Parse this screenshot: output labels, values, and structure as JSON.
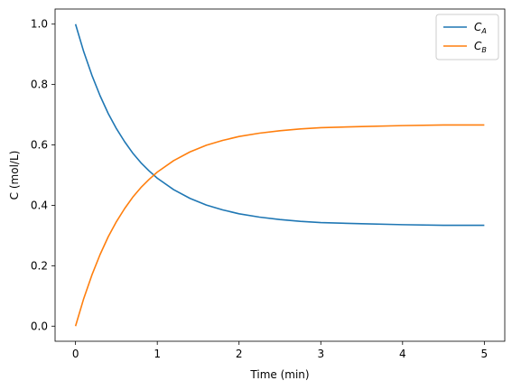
{
  "chart_data": {
    "type": "line",
    "xlabel": "Time (min)",
    "ylabel": "C (mol/L)",
    "xlim": [
      -0.25,
      5.25
    ],
    "ylim": [
      -0.05,
      1.05
    ],
    "xticks": [
      0,
      1,
      2,
      3,
      4,
      5
    ],
    "xtick_labels": [
      "0",
      "1",
      "2",
      "3",
      "4",
      "5"
    ],
    "yticks": [
      0.0,
      0.2,
      0.4,
      0.6,
      0.8,
      1.0
    ],
    "ytick_labels": [
      "0.0",
      "0.2",
      "0.4",
      "0.6",
      "0.8",
      "1.0"
    ],
    "grid": false,
    "legend_position": "top-right",
    "x": [
      0,
      0.1,
      0.2,
      0.3,
      0.4,
      0.5,
      0.6,
      0.7,
      0.8,
      0.9,
      1.0,
      1.2,
      1.4,
      1.6,
      1.8,
      2.0,
      2.25,
      2.5,
      2.75,
      3.0,
      3.5,
      4.0,
      4.5,
      5.0
    ],
    "series": [
      {
        "name": "C_A",
        "label_main": "C",
        "label_sub": "A",
        "color": "#1f77b4",
        "values": [
          1.0,
          0.909,
          0.831,
          0.763,
          0.704,
          0.654,
          0.611,
          0.573,
          0.541,
          0.514,
          0.49,
          0.452,
          0.423,
          0.401,
          0.385,
          0.372,
          0.361,
          0.353,
          0.347,
          0.343,
          0.339,
          0.336,
          0.334,
          0.334
        ]
      },
      {
        "name": "C_B",
        "label_main": "C",
        "label_sub": "B",
        "color": "#ff7f0e",
        "values": [
          0.0,
          0.091,
          0.169,
          0.237,
          0.296,
          0.346,
          0.389,
          0.427,
          0.459,
          0.486,
          0.51,
          0.548,
          0.577,
          0.599,
          0.615,
          0.628,
          0.639,
          0.647,
          0.653,
          0.657,
          0.661,
          0.664,
          0.666,
          0.666
        ]
      }
    ]
  }
}
